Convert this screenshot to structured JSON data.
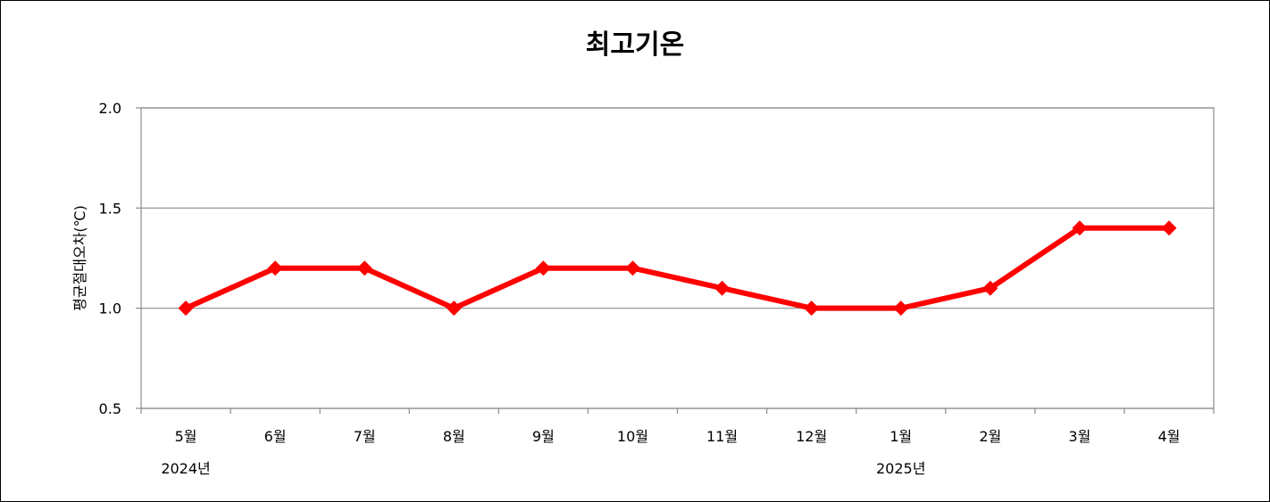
{
  "chart_data": {
    "type": "line",
    "title": "최고기온",
    "ylabel": "평균절대오차(℃)",
    "xlabel": "",
    "categories": [
      "5월",
      "6월",
      "7월",
      "8월",
      "9월",
      "10월",
      "11월",
      "12월",
      "1월",
      "2월",
      "3월",
      "4월"
    ],
    "year_labels": [
      {
        "index": 0,
        "label": "2024년"
      },
      {
        "index": 8,
        "label": "2025년"
      }
    ],
    "series": [
      {
        "values": [
          1.0,
          1.2,
          1.2,
          1.0,
          1.2,
          1.2,
          1.1,
          1.0,
          1.0,
          1.1,
          1.4,
          1.4
        ],
        "color": "#ff0000"
      }
    ],
    "ylim": [
      0.5,
      2.0
    ],
    "yticks": [
      "0.5",
      "1.0",
      "1.5",
      "2.0"
    ],
    "grid": true,
    "marker": "diamond",
    "legend": "none"
  }
}
